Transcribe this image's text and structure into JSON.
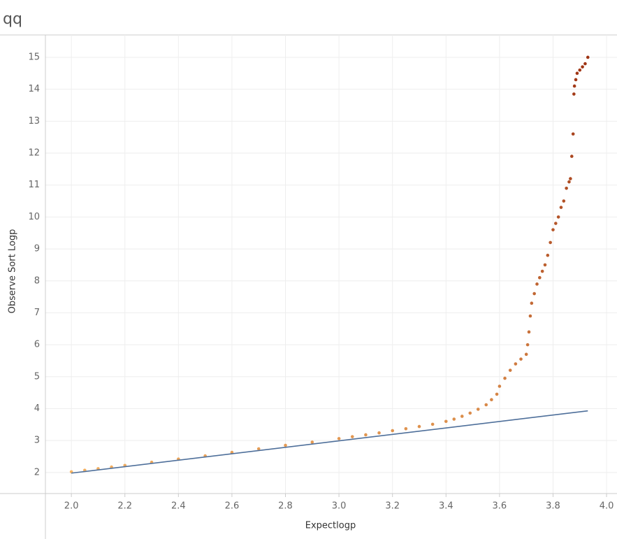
{
  "chart_data": {
    "type": "scatter",
    "title": "qq",
    "x_label": "Expectlogp",
    "y_label": "Observe Sort Logp",
    "xlim": [
      1.903,
      4.039
    ],
    "ylim": [
      1.34,
      15.7
    ],
    "xticks": [
      {
        "value": 2,
        "label": "2.0"
      },
      2.2,
      2.4,
      2.6,
      2.8,
      {
        "value": 3,
        "label": "3.0"
      },
      3.2,
      3.4,
      3.6,
      3.8,
      {
        "value": 4,
        "label": "4.0"
      }
    ],
    "yticks": [
      2,
      3,
      4,
      5,
      6,
      7,
      8,
      9,
      10,
      11,
      12,
      13,
      14,
      15
    ],
    "grid": true,
    "series": [
      {
        "type": "scatter",
        "color_range": [
          "#f6b463",
          "#9e3414"
        ],
        "x": [
          2.0,
          2.05,
          2.1,
          2.15,
          2.2,
          2.3,
          2.4,
          2.5,
          2.6,
          2.7,
          2.8,
          2.9,
          3.0,
          3.05,
          3.1,
          3.15,
          3.2,
          3.25,
          3.3,
          3.35,
          3.4,
          3.43,
          3.46,
          3.49,
          3.52,
          3.55,
          3.57,
          3.59,
          3.6,
          3.62,
          3.64,
          3.66,
          3.68,
          3.7,
          3.705,
          3.71,
          3.715,
          3.72,
          3.73,
          3.74,
          3.75,
          3.76,
          3.77,
          3.78,
          3.79,
          3.8,
          3.81,
          3.82,
          3.83,
          3.84,
          3.85,
          3.86,
          3.865,
          3.87,
          3.875,
          3.878,
          3.88,
          3.885,
          3.89,
          3.9,
          3.91,
          3.92,
          3.93
        ],
        "values": [
          2.02,
          2.07,
          2.12,
          2.17,
          2.22,
          2.32,
          2.42,
          2.52,
          2.63,
          2.74,
          2.85,
          2.95,
          3.06,
          3.12,
          3.18,
          3.24,
          3.31,
          3.37,
          3.44,
          3.51,
          3.6,
          3.67,
          3.76,
          3.86,
          3.98,
          4.12,
          4.28,
          4.45,
          4.7,
          4.95,
          5.2,
          5.4,
          5.55,
          5.7,
          6.0,
          6.4,
          6.9,
          7.3,
          7.6,
          7.9,
          8.1,
          8.3,
          8.5,
          8.8,
          9.2,
          9.6,
          9.8,
          10.0,
          10.3,
          10.5,
          10.9,
          11.1,
          11.2,
          11.9,
          12.6,
          13.85,
          14.1,
          14.3,
          14.5,
          14.6,
          14.7,
          14.8,
          15.0
        ]
      },
      {
        "type": "line",
        "color": "#4e6f9a",
        "x": [
          2.0,
          3.93
        ],
        "values": [
          1.98,
          3.93
        ]
      }
    ]
  }
}
